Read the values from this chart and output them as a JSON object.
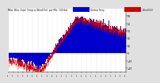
{
  "title": "Milw  Wea  Outd  Temp vs Wind Chill  per Min  (24 Hrs)",
  "bg_color": "#e0e0e0",
  "plot_bg_color": "#ffffff",
  "bar_color": "#0000cc",
  "line_color": "#cc0000",
  "legend_bar_label": "Outdoor Temp",
  "legend_line_label": "Wind Chill",
  "ylim": [
    -25,
    60
  ],
  "yticks": [
    -20,
    -10,
    0,
    10,
    20,
    30,
    40,
    50
  ],
  "n_points": 1440,
  "seed": 42
}
